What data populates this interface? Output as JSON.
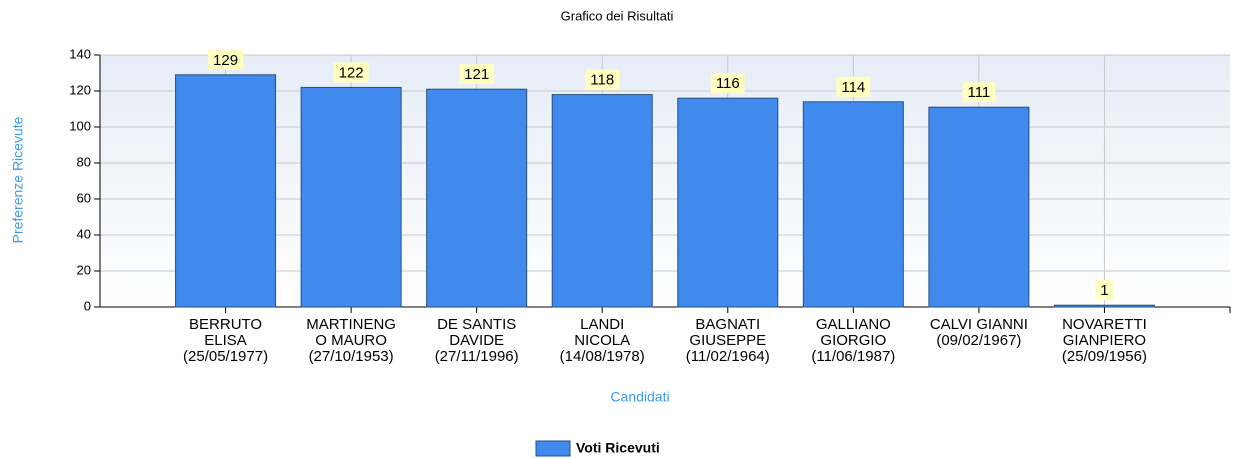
{
  "chart_data": {
    "type": "bar",
    "title": "Grafico dei Risultati",
    "x_label": "Candidati",
    "y_label": "Preferenze Ricevute",
    "categories": [
      [
        "BERRUTO",
        "ELISA",
        "(25/05/1977)"
      ],
      [
        "MARTINENG",
        "O MAURO",
        "(27/10/1953)"
      ],
      [
        "DE SANTIS",
        "DAVIDE",
        "(27/11/1996)"
      ],
      [
        "LANDI",
        "NICOLA",
        "(14/08/1978)"
      ],
      [
        "BAGNATI",
        "GIUSEPPE",
        "(11/02/1964)"
      ],
      [
        "GALLIANO",
        "GIORGIO",
        "(11/06/1987)"
      ],
      [
        "CALVI GIANNI",
        "(09/02/1967)"
      ],
      [
        "NOVARETTI",
        "GIANPIERO",
        "(25/09/1956)"
      ]
    ],
    "series": [
      {
        "name": "Voti Ricevuti",
        "color": "#418aed",
        "values": [
          129,
          122,
          121,
          118,
          116,
          114,
          111,
          1
        ]
      }
    ],
    "ylim": [
      0,
      140
    ],
    "yticks": [
      0,
      20,
      40,
      60,
      80,
      100,
      120,
      140
    ],
    "grid": true,
    "legend": "bottom"
  }
}
